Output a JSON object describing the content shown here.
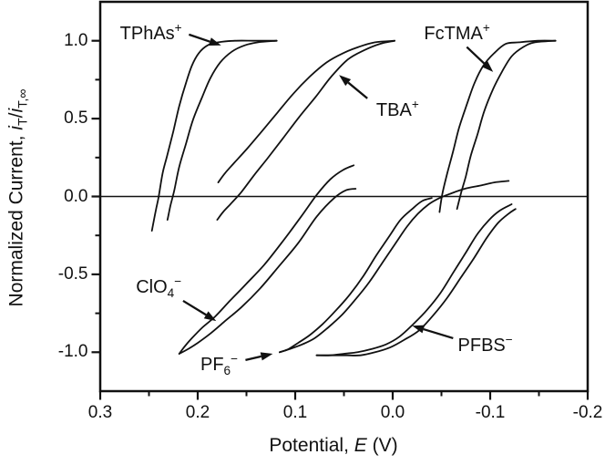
{
  "figure": {
    "background": "#ffffff",
    "ink": "#111111"
  },
  "axes": {
    "x": {
      "label_pre": "Potential, ",
      "label_var": "E",
      "label_post": " (V)",
      "major_ticks": [
        0.3,
        0.2,
        0.1,
        0.0,
        -0.1,
        -0.2
      ],
      "major_tick_labels": [
        "0.3",
        "0.2",
        "0.1",
        "0.0",
        "-0.1",
        "-0.2"
      ],
      "minor_ticks": [
        0.25,
        0.15,
        0.05,
        -0.05,
        -0.15
      ]
    },
    "y": {
      "label_pre": "Normalized Current, ",
      "i1": "i",
      "sub1": "T",
      "slash": "/",
      "i2": "i",
      "sub2": "T,∞",
      "major_ticks": [
        1.0,
        0.5,
        0.0,
        -0.5,
        -1.0
      ],
      "major_tick_labels": [
        "1.0",
        "0.5",
        "0.0",
        "-0.5",
        "-1.0"
      ],
      "minor_ticks": [
        0.75,
        0.25,
        -0.25,
        -0.75
      ]
    }
  },
  "chart_data": {
    "type": "line",
    "title": "",
    "xlabel": "Potential, E (V)",
    "ylabel": "Normalized Current, iT/iT,∞",
    "xlim": [
      0.3,
      -0.2
    ],
    "ylim": [
      -1.25,
      1.25
    ],
    "x_axis_reversed": true,
    "grid": false,
    "zero_line": true,
    "series": [
      {
        "name": "TPhAs+",
        "slug": "tphas",
        "branches": [
          [
            [
              0.247,
              -0.22
            ],
            [
              0.243,
              -0.09
            ],
            [
              0.24,
              0.0
            ],
            [
              0.236,
              0.15
            ],
            [
              0.231,
              0.27
            ],
            [
              0.225,
              0.42
            ],
            [
              0.219,
              0.58
            ],
            [
              0.212,
              0.73
            ],
            [
              0.206,
              0.84
            ],
            [
              0.199,
              0.92
            ],
            [
              0.19,
              0.97
            ],
            [
              0.179,
              0.99
            ],
            [
              0.162,
              1.0
            ],
            [
              0.141,
              1.0
            ],
            [
              0.119,
              1.0
            ]
          ],
          [
            [
              0.231,
              -0.15
            ],
            [
              0.228,
              -0.06
            ],
            [
              0.224,
              0.04
            ],
            [
              0.219,
              0.19
            ],
            [
              0.212,
              0.34
            ],
            [
              0.205,
              0.49
            ],
            [
              0.196,
              0.63
            ],
            [
              0.187,
              0.76
            ],
            [
              0.177,
              0.86
            ],
            [
              0.165,
              0.93
            ],
            [
              0.152,
              0.97
            ],
            [
              0.138,
              0.99
            ],
            [
              0.119,
              1.0
            ]
          ]
        ]
      },
      {
        "name": "TBA+",
        "slug": "tba",
        "branches": [
          [
            [
              0.179,
              0.09
            ],
            [
              0.172,
              0.15
            ],
            [
              0.162,
              0.22
            ],
            [
              0.149,
              0.31
            ],
            [
              0.134,
              0.42
            ],
            [
              0.118,
              0.54
            ],
            [
              0.102,
              0.66
            ],
            [
              0.085,
              0.77
            ],
            [
              0.068,
              0.86
            ],
            [
              0.051,
              0.92
            ],
            [
              0.035,
              0.96
            ],
            [
              0.018,
              0.99
            ],
            [
              -0.002,
              1.0
            ]
          ],
          [
            [
              0.18,
              -0.15
            ],
            [
              0.174,
              -0.1
            ],
            [
              0.165,
              -0.04
            ],
            [
              0.155,
              0.03
            ],
            [
              0.143,
              0.13
            ],
            [
              0.129,
              0.24
            ],
            [
              0.113,
              0.37
            ],
            [
              0.096,
              0.51
            ],
            [
              0.079,
              0.64
            ],
            [
              0.063,
              0.77
            ],
            [
              0.046,
              0.88
            ],
            [
              0.029,
              0.94
            ],
            [
              0.013,
              0.98
            ],
            [
              -0.002,
              1.0
            ]
          ]
        ]
      },
      {
        "name": "FcTMA+",
        "slug": "fctma",
        "branches": [
          [
            [
              -0.048,
              -0.1
            ],
            [
              -0.051,
              0.02
            ],
            [
              -0.056,
              0.15
            ],
            [
              -0.062,
              0.29
            ],
            [
              -0.068,
              0.44
            ],
            [
              -0.076,
              0.59
            ],
            [
              -0.084,
              0.73
            ],
            [
              -0.093,
              0.84
            ],
            [
              -0.104,
              0.92
            ],
            [
              -0.116,
              0.98
            ],
            [
              -0.13,
              0.99
            ],
            [
              -0.149,
              1.0
            ],
            [
              -0.167,
              1.0
            ]
          ],
          [
            [
              -0.066,
              -0.08
            ],
            [
              -0.07,
              0.02
            ],
            [
              -0.075,
              0.13
            ],
            [
              -0.08,
              0.26
            ],
            [
              -0.087,
              0.4
            ],
            [
              -0.094,
              0.55
            ],
            [
              -0.103,
              0.69
            ],
            [
              -0.112,
              0.8
            ],
            [
              -0.122,
              0.9
            ],
            [
              -0.134,
              0.96
            ],
            [
              -0.146,
              0.99
            ],
            [
              -0.167,
              1.0
            ]
          ]
        ]
      },
      {
        "name": "ClO4-",
        "slug": "clo4",
        "branches": [
          [
            [
              0.219,
              -1.01
            ],
            [
              0.213,
              -0.96
            ],
            [
              0.206,
              -0.91
            ],
            [
              0.195,
              -0.84
            ],
            [
              0.182,
              -0.77
            ],
            [
              0.167,
              -0.67
            ],
            [
              0.15,
              -0.56
            ],
            [
              0.132,
              -0.44
            ],
            [
              0.113,
              -0.29
            ],
            [
              0.094,
              -0.13
            ],
            [
              0.078,
              0.01
            ],
            [
              0.064,
              0.11
            ],
            [
              0.051,
              0.17
            ],
            [
              0.04,
              0.2
            ]
          ],
          [
            [
              0.219,
              -1.01
            ],
            [
              0.21,
              -0.98
            ],
            [
              0.2,
              -0.94
            ],
            [
              0.187,
              -0.88
            ],
            [
              0.172,
              -0.8
            ],
            [
              0.155,
              -0.71
            ],
            [
              0.136,
              -0.59
            ],
            [
              0.117,
              -0.45
            ],
            [
              0.097,
              -0.3
            ],
            [
              0.078,
              -0.13
            ],
            [
              0.06,
              -0.01
            ],
            [
              0.048,
              0.04
            ],
            [
              0.038,
              0.05
            ]
          ]
        ]
      },
      {
        "name": "PF6-",
        "slug": "pf6",
        "branches": [
          [
            [
              0.116,
              -1.0
            ],
            [
              0.107,
              -0.98
            ],
            [
              0.097,
              -0.94
            ],
            [
              0.085,
              -0.89
            ],
            [
              0.072,
              -0.82
            ],
            [
              0.058,
              -0.73
            ],
            [
              0.044,
              -0.63
            ],
            [
              0.03,
              -0.51
            ],
            [
              0.017,
              -0.38
            ],
            [
              0.004,
              -0.26
            ],
            [
              -0.008,
              -0.15
            ],
            [
              -0.02,
              -0.08
            ],
            [
              -0.03,
              -0.03
            ],
            [
              -0.04,
              -0.01
            ]
          ],
          [
            [
              0.116,
              -1.0
            ],
            [
              0.106,
              -0.98
            ],
            [
              0.093,
              -0.95
            ],
            [
              0.08,
              -0.91
            ],
            [
              0.066,
              -0.84
            ],
            [
              0.052,
              -0.76
            ],
            [
              0.038,
              -0.66
            ],
            [
              0.024,
              -0.55
            ],
            [
              0.01,
              -0.42
            ],
            [
              -0.003,
              -0.3
            ],
            [
              -0.015,
              -0.19
            ],
            [
              -0.026,
              -0.11
            ],
            [
              -0.037,
              -0.05
            ],
            [
              -0.048,
              -0.01
            ],
            [
              -0.06,
              0.02
            ],
            [
              -0.074,
              0.05
            ],
            [
              -0.09,
              0.07
            ],
            [
              -0.104,
              0.09
            ],
            [
              -0.119,
              0.1
            ]
          ]
        ]
      },
      {
        "name": "PFBS-",
        "slug": "pfbs",
        "branches": [
          [
            [
              0.078,
              -1.02
            ],
            [
              0.064,
              -1.02
            ],
            [
              0.05,
              -1.01
            ],
            [
              0.036,
              -1.0
            ],
            [
              0.022,
              -0.98
            ],
            [
              0.007,
              -0.95
            ],
            [
              -0.007,
              -0.9
            ],
            [
              -0.021,
              -0.82
            ],
            [
              -0.035,
              -0.73
            ],
            [
              -0.049,
              -0.62
            ],
            [
              -0.062,
              -0.49
            ],
            [
              -0.075,
              -0.36
            ],
            [
              -0.087,
              -0.24
            ],
            [
              -0.099,
              -0.15
            ],
            [
              -0.11,
              -0.09
            ],
            [
              -0.122,
              -0.05
            ]
          ],
          [
            [
              0.078,
              -1.02
            ],
            [
              0.064,
              -1.02
            ],
            [
              0.048,
              -1.02
            ],
            [
              0.033,
              -1.02
            ],
            [
              0.018,
              -1.0
            ],
            [
              0.003,
              -0.97
            ],
            [
              -0.012,
              -0.92
            ],
            [
              -0.027,
              -0.86
            ],
            [
              -0.042,
              -0.76
            ],
            [
              -0.056,
              -0.65
            ],
            [
              -0.07,
              -0.52
            ],
            [
              -0.083,
              -0.4
            ],
            [
              -0.096,
              -0.27
            ],
            [
              -0.108,
              -0.17
            ],
            [
              -0.119,
              -0.11
            ],
            [
              -0.126,
              -0.08
            ]
          ]
        ]
      }
    ],
    "annotations": [
      {
        "slug": "tphas",
        "parts": [
          {
            "t": "TPhAs"
          },
          {
            "t": "+",
            "sup": true
          }
        ],
        "label_pos": [
          0.248,
          1.05
        ],
        "arrow_from": [
          0.209,
          1.04
        ],
        "arrow_to": [
          0.176,
          0.97
        ]
      },
      {
        "slug": "fctma",
        "parts": [
          {
            "t": "FcTMA"
          },
          {
            "t": "+",
            "sup": true
          }
        ],
        "label_pos": [
          -0.066,
          1.05
        ],
        "arrow_from": [
          -0.076,
          0.96
        ],
        "arrow_to": [
          -0.103,
          0.8
        ]
      },
      {
        "slug": "tba",
        "parts": [
          {
            "t": "TBA"
          },
          {
            "t": "+",
            "sup": true
          }
        ],
        "label_pos": [
          -0.005,
          0.56
        ],
        "arrow_from": [
          0.026,
          0.63
        ],
        "arrow_to": [
          0.055,
          0.78
        ]
      },
      {
        "slug": "clo4",
        "parts": [
          {
            "t": "ClO"
          },
          {
            "t": "4",
            "sub": true
          },
          {
            "t": "−",
            "sup": true
          }
        ],
        "label_pos": [
          0.24,
          -0.58
        ],
        "arrow_from": [
          0.215,
          -0.67
        ],
        "arrow_to": [
          0.181,
          -0.8
        ]
      },
      {
        "slug": "pf6",
        "parts": [
          {
            "t": "PF"
          },
          {
            "t": "6",
            "sub": true
          },
          {
            "t": "−",
            "sup": true
          }
        ],
        "label_pos": [
          0.178,
          -1.08
        ],
        "arrow_from": [
          0.151,
          -1.05
        ],
        "arrow_to": [
          0.123,
          -1.01
        ]
      },
      {
        "slug": "pfbs",
        "parts": [
          {
            "t": "PFBS"
          },
          {
            "t": "−",
            "sup": true
          }
        ],
        "label_pos": [
          -0.095,
          -0.95
        ],
        "arrow_from": [
          -0.062,
          -0.91
        ],
        "arrow_to": [
          -0.02,
          -0.83
        ]
      }
    ]
  }
}
